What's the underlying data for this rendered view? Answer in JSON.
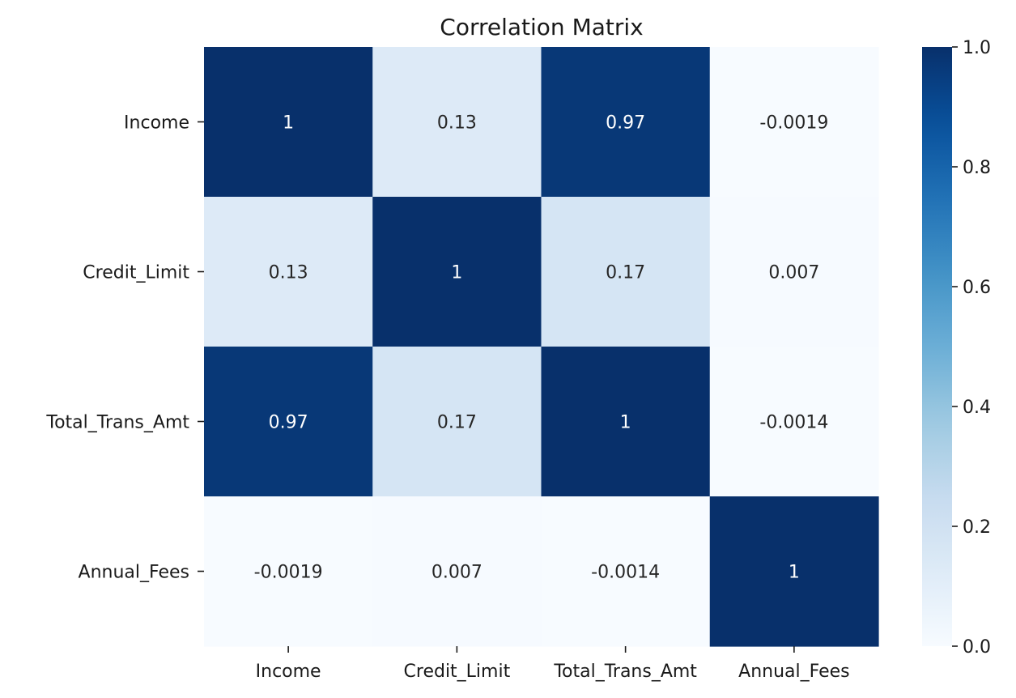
{
  "chart_data": {
    "type": "heatmap",
    "title": "Correlation Matrix",
    "xlabel": "",
    "ylabel": "",
    "x_categories": [
      "Income",
      "Credit_Limit",
      "Total_Trans_Amt",
      "Annual_Fees"
    ],
    "y_categories": [
      "Income",
      "Credit_Limit",
      "Total_Trans_Amt",
      "Annual_Fees"
    ],
    "values": [
      [
        1,
        0.13,
        0.97,
        -0.0019
      ],
      [
        0.13,
        1,
        0.17,
        0.007
      ],
      [
        0.97,
        0.17,
        1,
        -0.0014
      ],
      [
        -0.0019,
        0.007,
        -0.0014,
        1
      ]
    ],
    "annotations": [
      [
        "1",
        "0.13",
        "0.97",
        "-0.0019"
      ],
      [
        "0.13",
        "1",
        "0.17",
        "0.007"
      ],
      [
        "0.97",
        "0.17",
        "1",
        "-0.0014"
      ],
      [
        "-0.0019",
        "0.007",
        "-0.0014",
        "1"
      ]
    ],
    "colormap": "Blues",
    "colorbar": {
      "range": [
        0.0,
        1.0
      ],
      "ticks": [
        0.0,
        0.2,
        0.4,
        0.6,
        0.8,
        1.0
      ],
      "tick_labels": [
        "0.0",
        "0.2",
        "0.4",
        "0.6",
        "0.8",
        "1.0"
      ],
      "position": "right"
    },
    "colors": {
      "low": "#f7fbff",
      "high": "#08306b",
      "annotation_dark": "#262626",
      "annotation_light": "#ffffff"
    }
  }
}
